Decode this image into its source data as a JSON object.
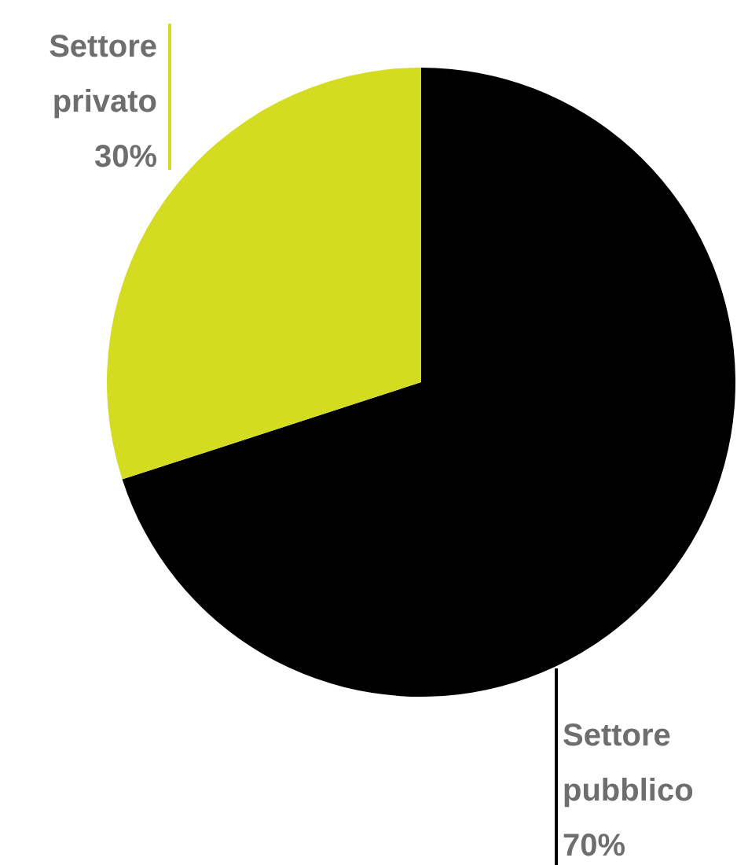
{
  "chart_data": {
    "type": "pie",
    "categories": [
      "Settore pubblico",
      "Settore privato"
    ],
    "values": [
      70,
      30
    ],
    "colors": [
      "#000000",
      "#d4dc22"
    ],
    "value_labels": [
      "70%",
      "30%"
    ]
  }
}
